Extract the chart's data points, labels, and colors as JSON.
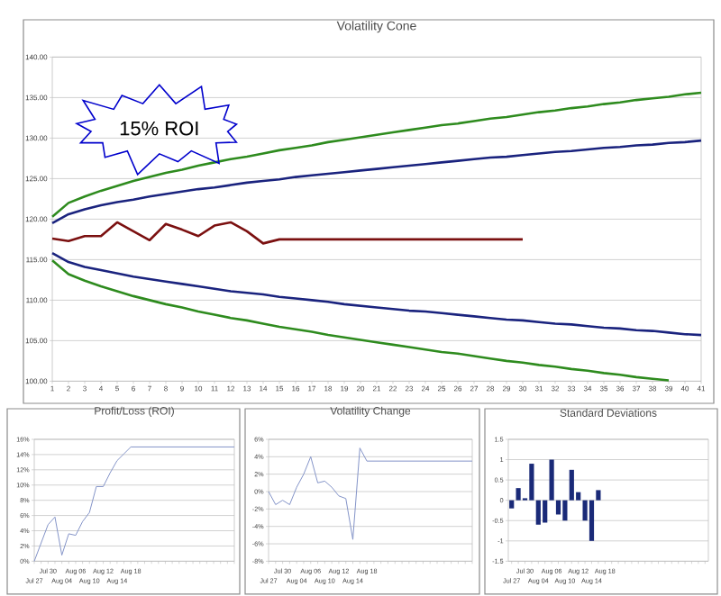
{
  "chart_data": [
    {
      "type": "line",
      "title": "Volatility Cone",
      "categories": [
        "1",
        "2",
        "3",
        "4",
        "5",
        "6",
        "7",
        "8",
        "9",
        "10",
        "11",
        "12",
        "13",
        "14",
        "15",
        "16",
        "17",
        "18",
        "19",
        "20",
        "21",
        "22",
        "23",
        "24",
        "25",
        "26",
        "27",
        "28",
        "29",
        "30",
        "31",
        "32",
        "33",
        "34",
        "35",
        "36",
        "37",
        "38",
        "39",
        "40",
        "41"
      ],
      "series": [
        {
          "color": "#2e8b1e",
          "values": [
            120.3,
            122.0,
            122.8,
            123.5,
            124.1,
            124.7,
            125.2,
            125.7,
            126.1,
            126.6,
            127.0,
            127.4,
            127.7,
            128.1,
            128.5,
            128.8,
            129.1,
            129.5,
            129.8,
            130.1,
            130.4,
            130.7,
            131.0,
            131.3,
            131.6,
            131.8,
            132.1,
            132.4,
            132.6,
            132.9,
            133.2,
            133.4,
            133.7,
            133.9,
            134.2,
            134.4,
            134.7,
            134.9,
            135.1,
            135.4,
            135.6
          ]
        },
        {
          "color": "#1a237e",
          "values": [
            119.5,
            120.6,
            121.2,
            121.7,
            122.1,
            122.4,
            122.8,
            123.1,
            123.4,
            123.7,
            123.9,
            124.2,
            124.5,
            124.7,
            124.9,
            125.2,
            125.4,
            125.6,
            125.8,
            126.0,
            126.2,
            126.4,
            126.6,
            126.8,
            127.0,
            127.2,
            127.4,
            127.6,
            127.7,
            127.9,
            128.1,
            128.3,
            128.4,
            128.6,
            128.8,
            128.9,
            129.1,
            129.2,
            129.4,
            129.5,
            129.7
          ]
        },
        {
          "color": "#7b1010",
          "values": [
            117.6,
            117.3,
            117.9,
            117.9,
            119.6,
            118.5,
            117.4,
            119.4,
            118.7,
            117.9,
            119.2,
            119.6,
            118.5,
            117.0,
            117.5,
            117.5,
            117.5,
            117.5,
            117.5,
            117.5,
            117.5,
            117.5,
            117.5,
            117.5,
            117.5,
            117.5,
            117.5,
            117.5,
            117.5,
            117.5,
            null,
            null,
            null,
            null,
            null,
            null,
            null,
            null,
            null,
            null,
            null
          ]
        },
        {
          "color": "#1a237e",
          "values": [
            115.8,
            114.7,
            114.1,
            113.7,
            113.3,
            112.9,
            112.6,
            112.3,
            112.0,
            111.7,
            111.4,
            111.1,
            110.9,
            110.7,
            110.4,
            110.2,
            110.0,
            109.8,
            109.5,
            109.3,
            109.1,
            108.9,
            108.7,
            108.6,
            108.4,
            108.2,
            108.0,
            107.8,
            107.6,
            107.5,
            107.3,
            107.1,
            107.0,
            106.8,
            106.6,
            106.5,
            106.3,
            106.2,
            106.0,
            105.8,
            105.7
          ]
        },
        {
          "color": "#2e8b1e",
          "values": [
            114.9,
            113.2,
            112.4,
            111.7,
            111.1,
            110.5,
            110.0,
            109.5,
            109.1,
            108.6,
            108.2,
            107.8,
            107.5,
            107.1,
            106.7,
            106.4,
            106.1,
            105.7,
            105.4,
            105.1,
            104.8,
            104.5,
            104.2,
            103.9,
            103.6,
            103.4,
            103.1,
            102.8,
            102.5,
            102.3,
            102.0,
            101.8,
            101.5,
            101.3,
            101.0,
            100.8,
            100.5,
            100.3,
            100.1,
            null,
            null
          ]
        }
      ],
      "ylim": [
        100,
        140
      ],
      "yticks": [
        {
          "value": 100,
          "label": "100.00"
        },
        {
          "value": 105,
          "label": "105.00"
        },
        {
          "value": 110,
          "label": "110.00"
        },
        {
          "value": 115,
          "label": "115.00"
        },
        {
          "value": 120,
          "label": "120.00"
        },
        {
          "value": 125,
          "label": "125.00"
        },
        {
          "value": 130,
          "label": "130.00"
        },
        {
          "value": 135,
          "label": "135.00"
        },
        {
          "value": 140,
          "label": "140.00"
        }
      ],
      "grid": "y",
      "annotations": [
        "15% ROI"
      ]
    },
    {
      "type": "line",
      "title": "Profit/Loss (ROI)",
      "categories": [
        "Jul 27",
        null,
        "Jul 30",
        null,
        "Aug 04",
        null,
        "Aug 06",
        null,
        "Aug 10",
        null,
        "Aug 12",
        null,
        "Aug 14",
        null,
        "Aug 18",
        null,
        null,
        null,
        null,
        null,
        null,
        null,
        null,
        null,
        null,
        null,
        null,
        null,
        null,
        null
      ],
      "color": "#8494c8",
      "values": [
        0,
        2.4,
        4.8,
        5.8,
        0.8,
        3.6,
        3.4,
        5.2,
        6.4,
        9.8,
        9.8,
        11.6,
        13.2,
        14.1,
        15,
        15,
        15,
        15,
        15,
        15,
        15,
        15,
        15,
        15,
        15,
        15,
        15,
        15,
        15,
        15
      ],
      "ylim": [
        0,
        16
      ],
      "yticks": [
        {
          "value": 0,
          "label": "0%"
        },
        {
          "value": 2,
          "label": "2%"
        },
        {
          "value": 4,
          "label": "4%"
        },
        {
          "value": 6,
          "label": "6%"
        },
        {
          "value": 8,
          "label": "8%"
        },
        {
          "value": 10,
          "label": "10%"
        },
        {
          "value": 12,
          "label": "12%"
        },
        {
          "value": 14,
          "label": "14%"
        },
        {
          "value": 16,
          "label": "16%"
        }
      ],
      "grid": "y"
    },
    {
      "type": "line",
      "title": "Volatility Change",
      "categories": [
        "Jul 27",
        null,
        "Jul 30",
        null,
        "Aug 04",
        null,
        "Aug 06",
        null,
        "Aug 10",
        null,
        "Aug 12",
        null,
        "Aug 14",
        null,
        "Aug 18",
        null,
        null,
        null,
        null,
        null,
        null,
        null,
        null,
        null,
        null,
        null,
        null,
        null,
        null,
        null
      ],
      "color": "#8494c8",
      "values": [
        0,
        -1.5,
        -1.0,
        -1.5,
        0.5,
        2.0,
        4.0,
        1.0,
        1.2,
        0.5,
        -0.5,
        -0.8,
        -5.5,
        5.0,
        3.5,
        3.5,
        3.5,
        3.5,
        3.5,
        3.5,
        3.5,
        3.5,
        3.5,
        3.5,
        3.5,
        3.5,
        3.5,
        3.5,
        3.5,
        3.5
      ],
      "ylim": [
        -8,
        6
      ],
      "yticks": [
        {
          "value": -8,
          "label": "-8%"
        },
        {
          "value": -6,
          "label": "-6%"
        },
        {
          "value": -4,
          "label": "-4%"
        },
        {
          "value": -2,
          "label": "-2%"
        },
        {
          "value": 0,
          "label": "0%"
        },
        {
          "value": 2,
          "label": "2%"
        },
        {
          "value": 4,
          "label": "4%"
        },
        {
          "value": 6,
          "label": "6%"
        }
      ],
      "grid": "y"
    },
    {
      "type": "bar",
      "title": "Standard Deviations",
      "categories": [
        "Jul 27",
        null,
        "Jul 30",
        null,
        "Aug 04",
        null,
        "Aug 06",
        null,
        "Aug 10",
        null,
        "Aug 12",
        null,
        "Aug 14",
        null,
        "Aug 18",
        null,
        null,
        null,
        null,
        null,
        null,
        null,
        null,
        null,
        null,
        null,
        null,
        null,
        null,
        null
      ],
      "color": "#1a2a78",
      "values": [
        -0.2,
        0.3,
        0.05,
        0.9,
        -0.6,
        -0.55,
        1.0,
        -0.35,
        -0.5,
        0.75,
        0.2,
        -0.5,
        -1.0,
        0.25,
        null,
        null,
        null,
        null,
        null,
        null,
        null,
        null,
        null,
        null,
        null,
        null,
        null,
        null,
        null,
        null
      ],
      "ylim": [
        -1.5,
        1.5
      ],
      "yticks": [
        -1.5,
        -1,
        -0.5,
        0,
        0.5,
        1,
        1.5
      ],
      "grid": "y"
    }
  ]
}
